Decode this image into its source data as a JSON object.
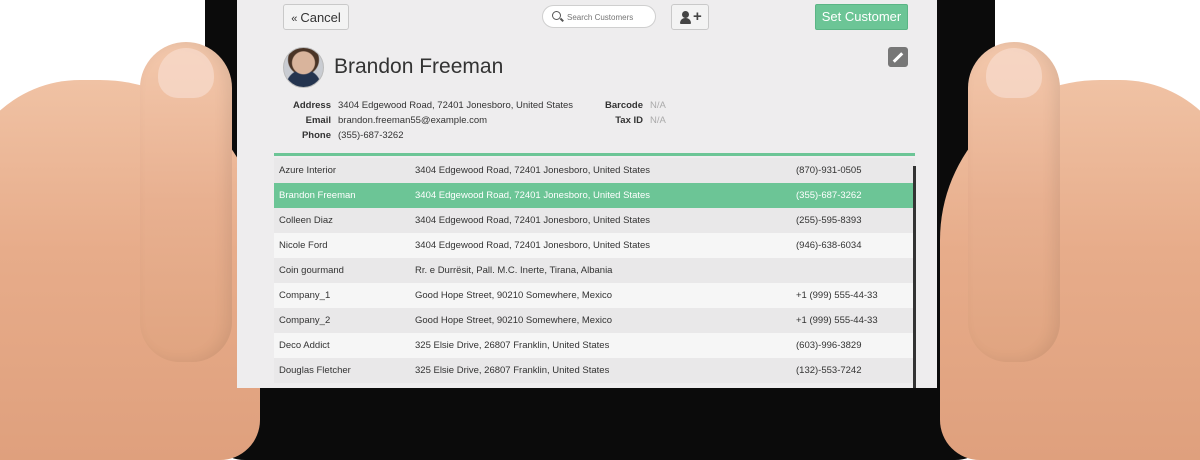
{
  "topbar": {
    "cancel_label": "Cancel",
    "search_placeholder": "Search Customers",
    "set_customer_label": "Set Customer"
  },
  "customer": {
    "name": "Brandon Freeman",
    "address_label": "Address",
    "address": "3404 Edgewood Road, 72401 Jonesboro, United States",
    "email_label": "Email",
    "email": "brandon.freeman55@example.com",
    "phone_label": "Phone",
    "phone": "(355)-687-3262",
    "barcode_label": "Barcode",
    "barcode": "N/A",
    "taxid_label": "Tax ID",
    "taxid": "N/A"
  },
  "customers": [
    {
      "name": "Azure Interior",
      "address": "3404 Edgewood Road, 72401 Jonesboro, United States",
      "phone": "(870)-931-0505"
    },
    {
      "name": "Brandon Freeman",
      "address": "3404 Edgewood Road, 72401 Jonesboro, United States",
      "phone": "(355)-687-3262",
      "selected": true
    },
    {
      "name": "Colleen Diaz",
      "address": "3404 Edgewood Road, 72401 Jonesboro, United States",
      "phone": "(255)-595-8393"
    },
    {
      "name": "Nicole Ford",
      "address": "3404 Edgewood Road, 72401 Jonesboro, United States",
      "phone": "(946)-638-6034"
    },
    {
      "name": "Coin gourmand",
      "address": "Rr. e Durrësit, Pall. M.C. Inerte, Tirana, Albania",
      "phone": ""
    },
    {
      "name": "Company_1",
      "address": "Good Hope Street, 90210 Somewhere, Mexico",
      "phone": "+1 (999) 555-44-33"
    },
    {
      "name": "Company_2",
      "address": "Good Hope Street, 90210 Somewhere, Mexico",
      "phone": "+1 (999) 555-44-33"
    },
    {
      "name": "Deco Addict",
      "address": "325 Elsie Drive, 26807 Franklin, United States",
      "phone": "(603)-996-3829"
    },
    {
      "name": "Douglas Fletcher",
      "address": "325 Elsie Drive, 26807 Franklin, United States",
      "phone": "(132)-553-7242"
    }
  ],
  "colors": {
    "accent": "#6cc596",
    "screen_bg": "#eeedee"
  }
}
